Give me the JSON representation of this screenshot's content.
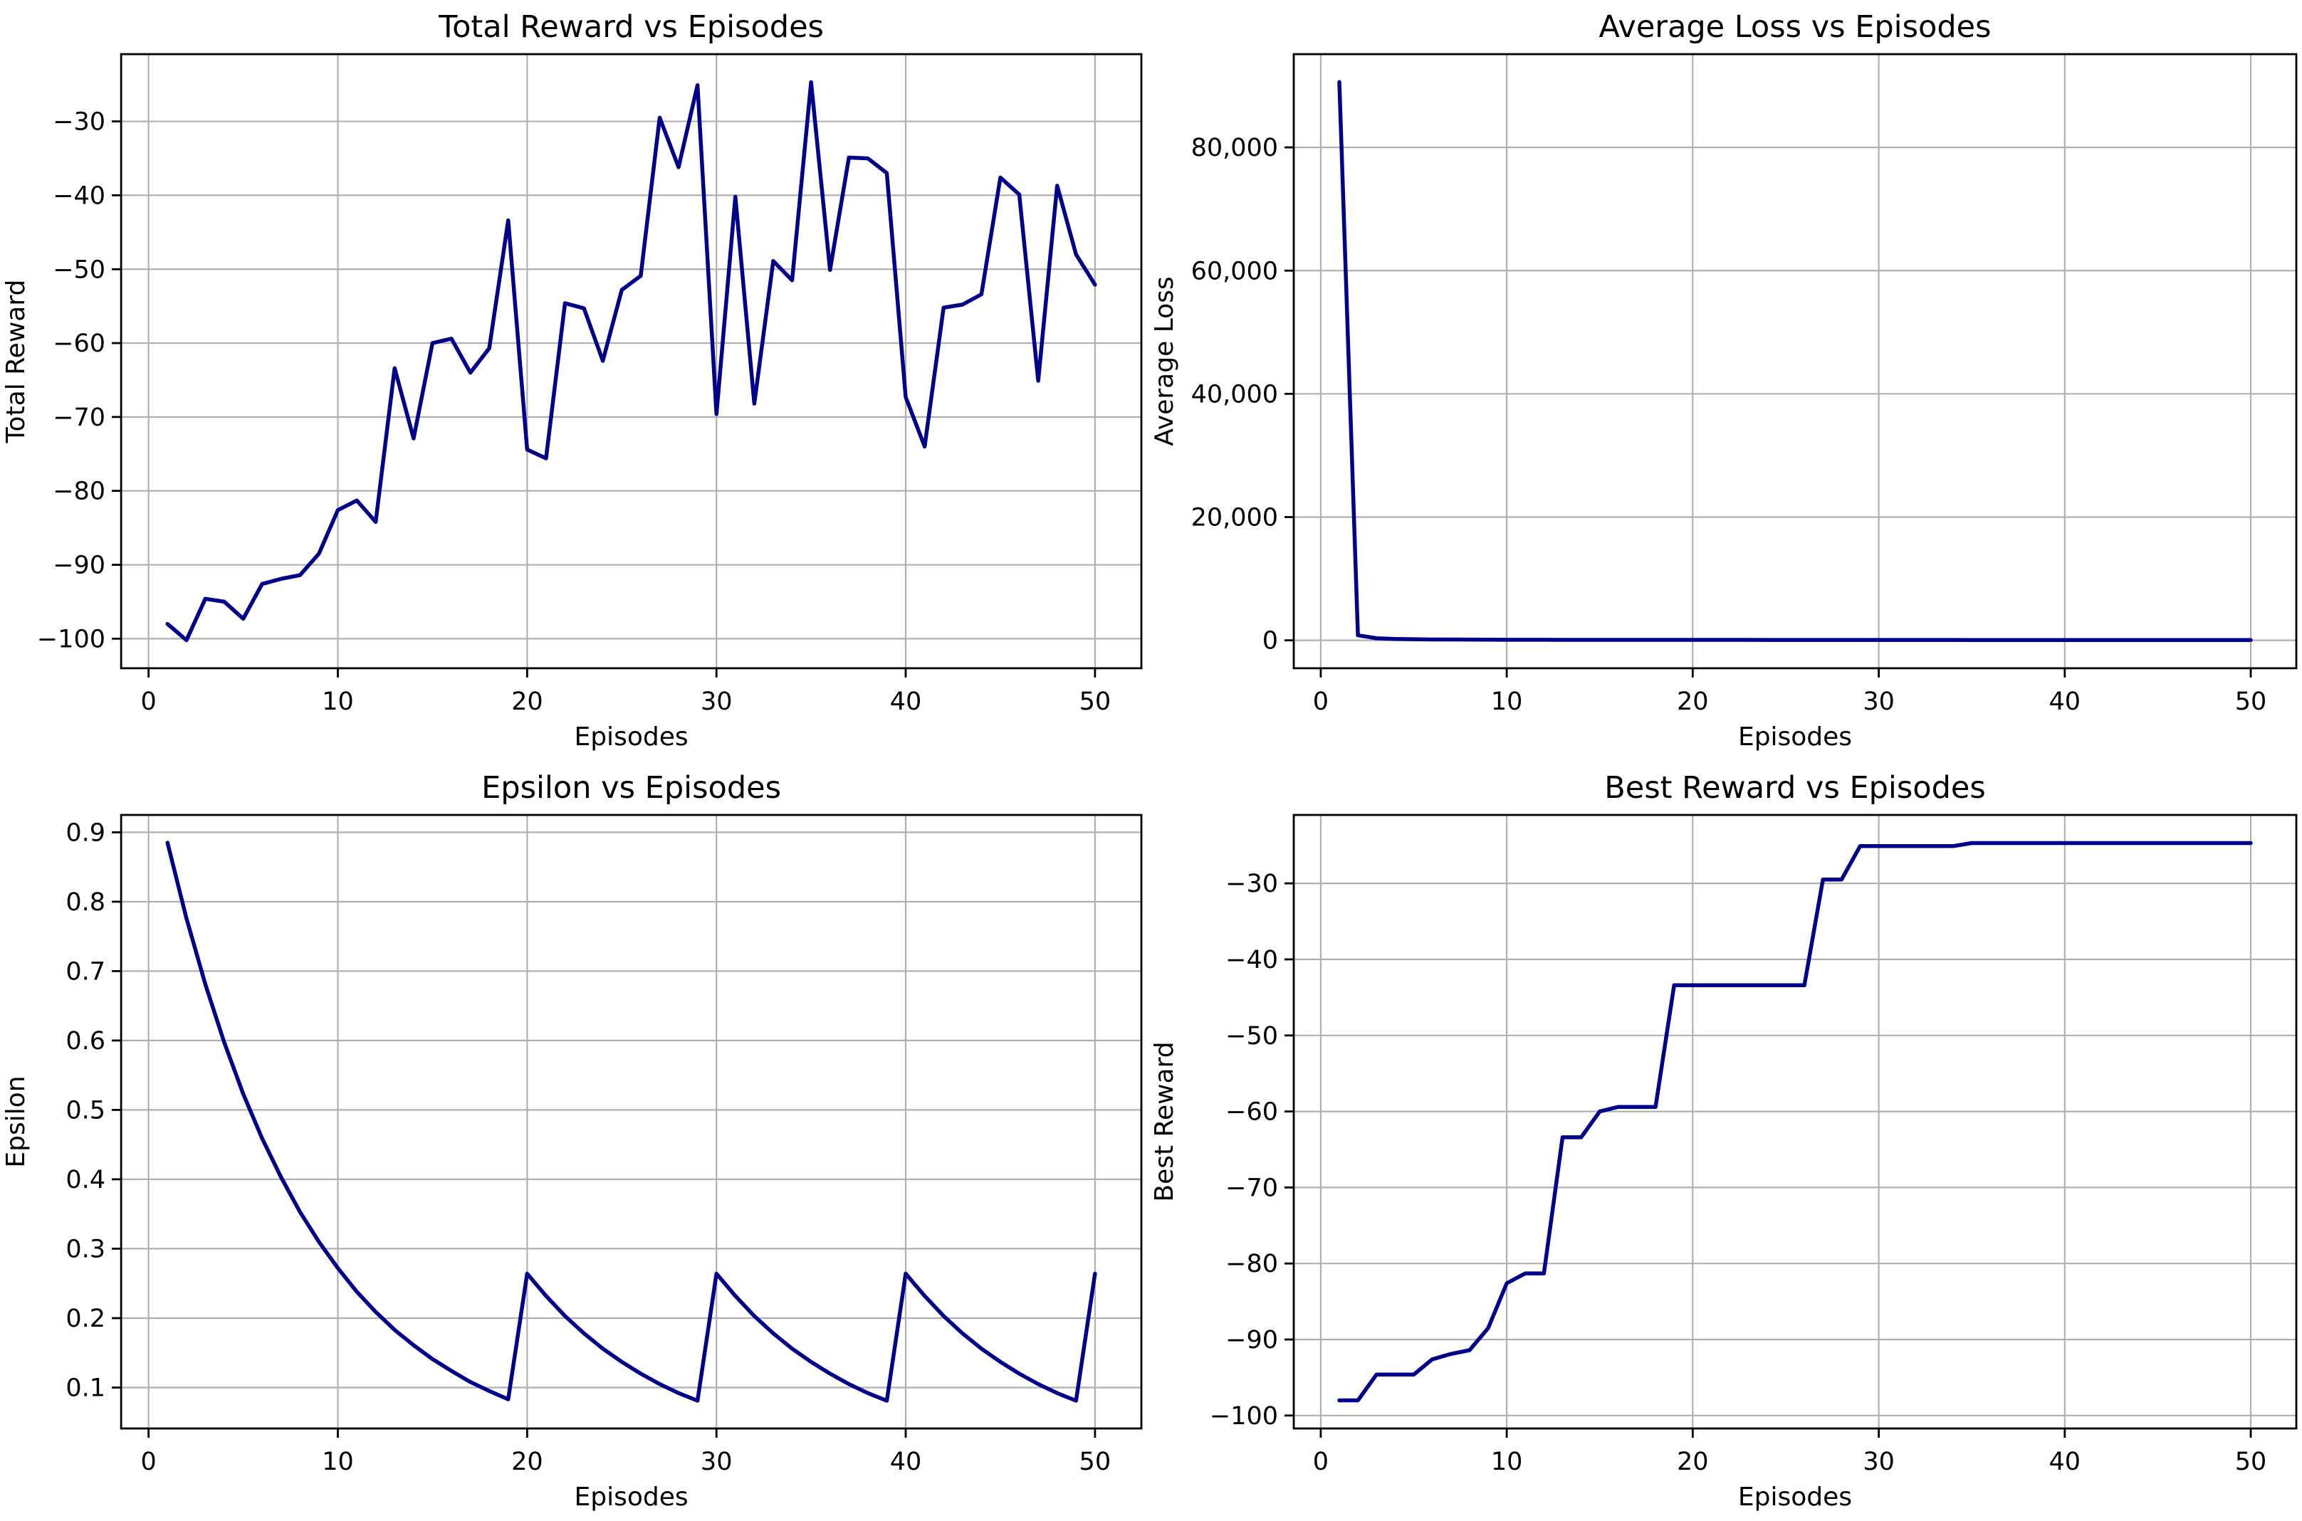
{
  "figure": {
    "background": "#ffffff",
    "line_color": "#00008b",
    "grid_color": "#b0b0b0",
    "spine_color": "#000000",
    "text_color": "#000000"
  },
  "chart_data": [
    {
      "id": "total-reward",
      "type": "line",
      "title": "Total Reward vs Episodes",
      "xlabel": "Episodes",
      "ylabel": "Total Reward",
      "grid": true,
      "legend": false,
      "xlim": [
        -1.45,
        52.45
      ],
      "ylim": [
        -104.0,
        -20.9
      ],
      "xticks": [
        0,
        10,
        20,
        30,
        40,
        50
      ],
      "xtick_labels": [
        "0",
        "10",
        "20",
        "30",
        "40",
        "50"
      ],
      "yticks": [
        -100,
        -90,
        -80,
        -70,
        -60,
        -50,
        -40,
        -30
      ],
      "ytick_labels": [
        "−100",
        "−90",
        "−80",
        "−70",
        "−60",
        "−50",
        "−40",
        "−30"
      ],
      "x": [
        1,
        2,
        3,
        4,
        5,
        6,
        7,
        8,
        9,
        10,
        11,
        12,
        13,
        14,
        15,
        16,
        17,
        18,
        19,
        20,
        21,
        22,
        23,
        24,
        25,
        26,
        27,
        28,
        29,
        30,
        31,
        32,
        33,
        34,
        35,
        36,
        37,
        38,
        39,
        40,
        41,
        42,
        43,
        44,
        45,
        46,
        47,
        48,
        49,
        50
      ],
      "y": [
        -98.0,
        -100.2,
        -94.6,
        -95.0,
        -97.3,
        -92.6,
        -91.9,
        -91.4,
        -88.5,
        -82.6,
        -81.3,
        -84.2,
        -63.4,
        -72.9,
        -60.0,
        -59.4,
        -64.0,
        -60.7,
        -43.4,
        -74.4,
        -75.6,
        -54.6,
        -55.3,
        -62.4,
        -52.8,
        -50.9,
        -29.5,
        -36.2,
        -25.1,
        -69.6,
        -40.2,
        -68.2,
        -48.9,
        -51.5,
        -24.7,
        -50.1,
        -34.9,
        -35.0,
        -37.0,
        -67.3,
        -74.0,
        -55.2,
        -54.8,
        -53.4,
        -37.6,
        -39.9,
        -65.1,
        -38.7,
        -48.0,
        -52.1
      ]
    },
    {
      "id": "average-loss",
      "type": "line",
      "title": "Average Loss vs Episodes",
      "xlabel": "Episodes",
      "ylabel": "Average Loss",
      "grid": true,
      "legend": false,
      "xlim": [
        -1.45,
        52.45
      ],
      "ylim": [
        -4530,
        95130
      ],
      "xticks": [
        0,
        10,
        20,
        30,
        40,
        50
      ],
      "xtick_labels": [
        "0",
        "10",
        "20",
        "30",
        "40",
        "50"
      ],
      "yticks": [
        0,
        20000,
        40000,
        60000,
        80000
      ],
      "ytick_labels": [
        "0",
        "20,000",
        "40,000",
        "60,000",
        "80,000"
      ],
      "x": [
        1,
        2,
        3,
        4,
        5,
        6,
        7,
        8,
        9,
        10,
        11,
        12,
        13,
        14,
        15,
        16,
        17,
        18,
        19,
        20,
        21,
        22,
        23,
        24,
        25,
        26,
        27,
        28,
        29,
        30,
        31,
        32,
        33,
        34,
        35,
        36,
        37,
        38,
        39,
        40,
        41,
        42,
        43,
        44,
        45,
        46,
        47,
        48,
        49,
        50
      ],
      "y": [
        90600,
        820,
        340,
        220,
        170,
        140,
        125,
        112,
        104,
        98,
        93,
        89,
        86,
        83,
        80,
        78,
        76,
        74,
        72,
        70,
        69,
        67,
        66,
        65,
        64,
        63,
        62,
        61,
        60,
        59,
        58,
        57,
        56,
        55,
        54,
        53,
        52,
        51,
        50,
        50,
        49,
        48,
        48,
        47,
        47,
        46,
        46,
        45,
        45,
        44
      ]
    },
    {
      "id": "epsilon",
      "type": "line",
      "title": "Epsilon vs Episodes",
      "xlabel": "Episodes",
      "ylabel": "Epsilon",
      "grid": true,
      "legend": false,
      "xlim": [
        -1.45,
        52.45
      ],
      "ylim": [
        0.041,
        0.925
      ],
      "xticks": [
        0,
        10,
        20,
        30,
        40,
        50
      ],
      "xtick_labels": [
        "0",
        "10",
        "20",
        "30",
        "40",
        "50"
      ],
      "yticks": [
        0.1,
        0.2,
        0.3,
        0.4,
        0.5,
        0.6,
        0.7,
        0.8,
        0.9
      ],
      "ytick_labels": [
        "0.1",
        "0.2",
        "0.3",
        "0.4",
        "0.5",
        "0.6",
        "0.7",
        "0.8",
        "0.9"
      ],
      "x": [
        1,
        2,
        3,
        4,
        5,
        6,
        7,
        8,
        9,
        10,
        11,
        12,
        13,
        14,
        15,
        16,
        17,
        18,
        19,
        20,
        21,
        22,
        23,
        24,
        25,
        26,
        27,
        28,
        29,
        30,
        31,
        32,
        33,
        34,
        35,
        36,
        37,
        38,
        39,
        40,
        41,
        42,
        43,
        44,
        45,
        46,
        47,
        48,
        49,
        50
      ],
      "y": [
        0.885,
        0.776,
        0.681,
        0.597,
        0.523,
        0.459,
        0.403,
        0.353,
        0.31,
        0.272,
        0.238,
        0.209,
        0.183,
        0.161,
        0.141,
        0.124,
        0.108,
        0.095,
        0.083,
        0.264,
        0.232,
        0.203,
        0.178,
        0.156,
        0.137,
        0.12,
        0.105,
        0.092,
        0.081,
        0.264,
        0.232,
        0.203,
        0.178,
        0.156,
        0.137,
        0.12,
        0.105,
        0.092,
        0.081,
        0.264,
        0.232,
        0.203,
        0.178,
        0.156,
        0.137,
        0.12,
        0.105,
        0.092,
        0.081,
        0.264
      ]
    },
    {
      "id": "best-reward",
      "type": "line",
      "title": "Best Reward vs Episodes",
      "xlabel": "Episodes",
      "ylabel": "Best Reward",
      "grid": true,
      "legend": false,
      "xlim": [
        -1.45,
        52.45
      ],
      "ylim": [
        -101.7,
        -21.0
      ],
      "xticks": [
        0,
        10,
        20,
        30,
        40,
        50
      ],
      "xtick_labels": [
        "0",
        "10",
        "20",
        "30",
        "40",
        "50"
      ],
      "yticks": [
        -100,
        -90,
        -80,
        -70,
        -60,
        -50,
        -40,
        -30
      ],
      "ytick_labels": [
        "−100",
        "−90",
        "−80",
        "−70",
        "−60",
        "−50",
        "−40",
        "−30"
      ],
      "x": [
        1,
        2,
        3,
        4,
        5,
        6,
        7,
        8,
        9,
        10,
        11,
        12,
        13,
        14,
        15,
        16,
        17,
        18,
        19,
        20,
        21,
        22,
        23,
        24,
        25,
        26,
        27,
        28,
        29,
        30,
        31,
        32,
        33,
        34,
        35,
        36,
        37,
        38,
        39,
        40,
        41,
        42,
        43,
        44,
        45,
        46,
        47,
        48,
        49,
        50
      ],
      "y": [
        -98.0,
        -98.0,
        -94.6,
        -94.6,
        -94.6,
        -92.6,
        -91.9,
        -91.4,
        -88.5,
        -82.6,
        -81.3,
        -81.3,
        -63.4,
        -63.4,
        -60.0,
        -59.4,
        -59.4,
        -59.4,
        -43.4,
        -43.4,
        -43.4,
        -43.4,
        -43.4,
        -43.4,
        -43.4,
        -43.4,
        -29.5,
        -29.5,
        -25.1,
        -25.1,
        -25.1,
        -25.1,
        -25.1,
        -25.1,
        -24.7,
        -24.7,
        -24.7,
        -24.7,
        -24.7,
        -24.7,
        -24.7,
        -24.7,
        -24.7,
        -24.7,
        -24.7,
        -24.7,
        -24.7,
        -24.7,
        -24.7,
        -24.7
      ]
    }
  ]
}
